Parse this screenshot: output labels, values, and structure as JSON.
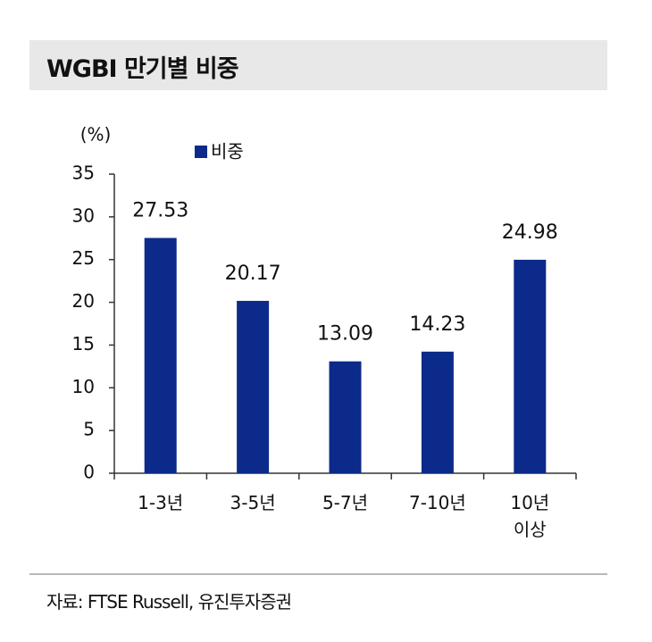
{
  "title": "WGBI 만기별 비중",
  "source": "자료: FTSE Russell, 유진투자증권",
  "chart_data": {
    "type": "bar",
    "y_label": "(%)",
    "categories": [
      "1-3년",
      "3-5년",
      "5-7년",
      "7-10년",
      "10년\n이상"
    ],
    "series": [
      {
        "name": "비중",
        "color": "#0c2a8a",
        "values": [
          27.53,
          20.17,
          13.09,
          14.23,
          24.98
        ]
      }
    ],
    "ylim": [
      0,
      35
    ],
    "yticks": [
      0,
      5,
      10,
      15,
      20,
      25,
      30,
      35
    ]
  }
}
